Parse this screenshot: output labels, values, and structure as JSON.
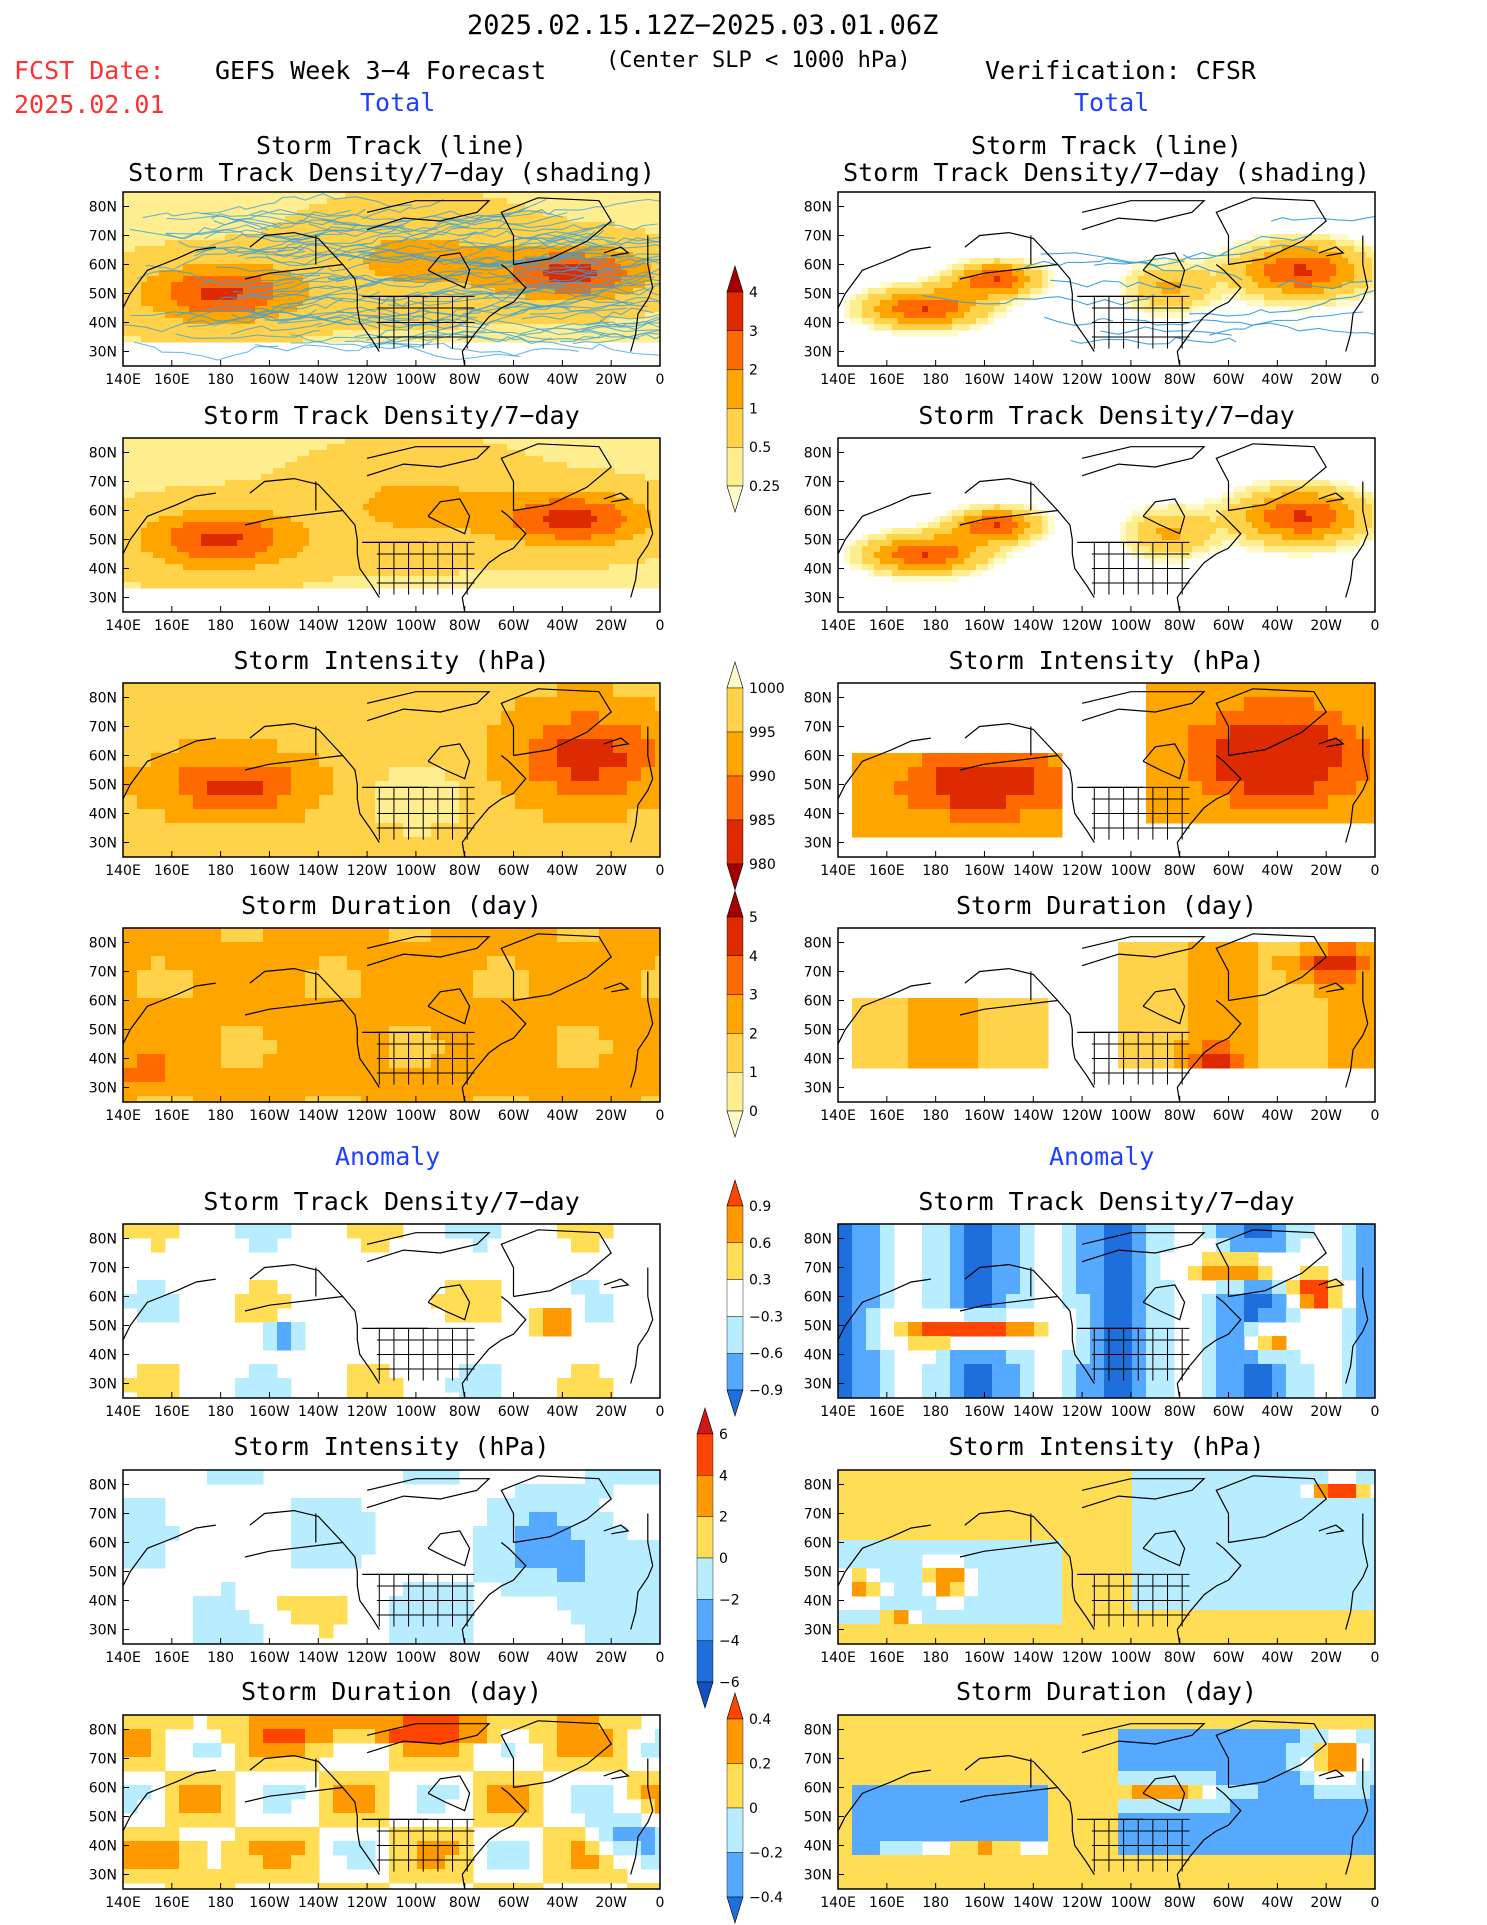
{
  "header": {
    "period": "2025.02.15.12Z−2025.03.01.06Z",
    "fcst_label": "FCST Date:",
    "fcst_date": "2025.02.01",
    "left_title": "GEFS Week 3−4 Forecast",
    "subtitle": "(Center SLP < 1000 hPa)",
    "right_title": "Verification: CFSR",
    "total_label": "Total",
    "anomaly_label": "Anomaly"
  },
  "axes": {
    "lat_ticks": [
      "80N",
      "70N",
      "60N",
      "50N",
      "40N",
      "30N"
    ],
    "lon_ticks": [
      "140E",
      "160E",
      "180",
      "160W",
      "140W",
      "120W",
      "100W",
      "80W",
      "60W",
      "40W",
      "20W",
      "0"
    ]
  },
  "chart_data": [
    {
      "type": "heatmap",
      "id": "total-track",
      "title": [
        "Storm Track (line)",
        "Storm Track Density/7−day (shading)"
      ],
      "source": "GEFS",
      "xlim": [
        "140E",
        "0"
      ],
      "ylim": [
        "25N",
        "85N"
      ]
    },
    {
      "type": "heatmap",
      "id": "cfsr-total-track",
      "title": [
        "Storm Track (line)",
        "Storm Track Density/7−day (shading)"
      ],
      "source": "CFSR",
      "xlim": [
        "140E",
        "0"
      ],
      "ylim": [
        "25N",
        "85N"
      ]
    },
    {
      "type": "heatmap",
      "id": "total-density",
      "title": [
        "Storm Track Density/7−day"
      ],
      "source": "GEFS"
    },
    {
      "type": "heatmap",
      "id": "cfsr-total-density",
      "title": [
        "Storm Track Density/7−day"
      ],
      "source": "CFSR"
    },
    {
      "type": "heatmap",
      "id": "total-intensity",
      "title": [
        "Storm Intensity (hPa)"
      ],
      "source": "GEFS"
    },
    {
      "type": "heatmap",
      "id": "cfsr-total-intensity",
      "title": [
        "Storm Intensity (hPa)"
      ],
      "source": "CFSR"
    },
    {
      "type": "heatmap",
      "id": "total-duration",
      "title": [
        "Storm Duration (day)"
      ],
      "source": "GEFS"
    },
    {
      "type": "heatmap",
      "id": "cfsr-total-duration",
      "title": [
        "Storm Duration (day)"
      ],
      "source": "CFSR"
    },
    {
      "type": "heatmap",
      "id": "anom-density",
      "title": [
        "Storm Track Density/7−day"
      ],
      "source": "GEFS"
    },
    {
      "type": "heatmap",
      "id": "cfsr-anom-density",
      "title": [
        "Storm Track Density/7−day"
      ],
      "source": "CFSR"
    },
    {
      "type": "heatmap",
      "id": "anom-intensity",
      "title": [
        "Storm Intensity (hPa)"
      ],
      "source": "GEFS"
    },
    {
      "type": "heatmap",
      "id": "cfsr-anom-intensity",
      "title": [
        "Storm Intensity (hPa)"
      ],
      "source": "CFSR"
    },
    {
      "type": "heatmap",
      "id": "anom-duration",
      "title": [
        "Storm Duration (day)"
      ],
      "source": "GEFS"
    },
    {
      "type": "heatmap",
      "id": "cfsr-anom-duration",
      "title": [
        "Storm Duration (day)"
      ],
      "source": "CFSR"
    }
  ],
  "colorbars": [
    {
      "id": "cb-density",
      "labels": [
        "4",
        "3",
        "2",
        "1",
        "0.5",
        "0.25"
      ],
      "colors": [
        "#a50000",
        "#dd2a00",
        "#ff6a00",
        "#ffa500",
        "#ffd24a",
        "#ffee90",
        "#fffac8"
      ]
    },
    {
      "id": "cb-intensity",
      "labels": [
        "1000",
        "995",
        "990",
        "985",
        "980"
      ],
      "colors": [
        "#fffac8",
        "#ffd24a",
        "#ffa500",
        "#ff6a00",
        "#dd2a00",
        "#a50000"
      ]
    },
    {
      "id": "cb-duration",
      "labels": [
        "5",
        "4",
        "3",
        "2",
        "1",
        "0"
      ],
      "colors": [
        "#a50000",
        "#dd2a00",
        "#ff6a00",
        "#ffa500",
        "#ffd24a",
        "#ffee90",
        "#fffac8"
      ]
    },
    {
      "id": "cb-anom-density",
      "labels": [
        "0.9",
        "0.6",
        "0.3",
        "−0.3",
        "−0.6",
        "−0.9"
      ],
      "colors": [
        "#ff4400",
        "#ff9900",
        "#ffdd55",
        "#ffffff",
        "#b8ecff",
        "#55aaff",
        "#1e6edc"
      ]
    },
    {
      "id": "cb-anom-intensity",
      "labels": [
        "6",
        "4",
        "2",
        "0",
        "−2",
        "−4",
        "−6"
      ],
      "colors": [
        "#d01818",
        "#ff4400",
        "#ff9900",
        "#ffdd55",
        "#b8ecff",
        "#55aaff",
        "#1e6edc",
        "#1050c0"
      ]
    },
    {
      "id": "cb-anom-duration",
      "labels": [
        "0.4",
        "0.2",
        "0",
        "−0.2",
        "−0.4"
      ],
      "colors": [
        "#ff4400",
        "#ff9900",
        "#ffdd55",
        "#b8ecff",
        "#55aaff",
        "#1e6edc"
      ]
    }
  ]
}
